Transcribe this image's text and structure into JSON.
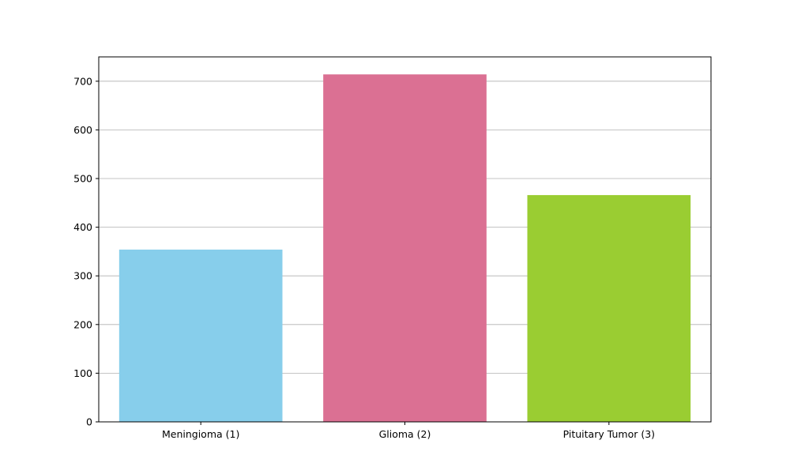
{
  "chart_data": {
    "type": "bar",
    "categories": [
      "Meningioma (1)",
      "Glioma (2)",
      "Pituitary Tumor (3)"
    ],
    "values": [
      354,
      714,
      466
    ],
    "colors": [
      "#87ceeb",
      "#db7093",
      "#9acd32"
    ],
    "title": "",
    "xlabel": "",
    "ylabel": "",
    "ylim": [
      0,
      750
    ],
    "yticks": [
      0,
      100,
      200,
      300,
      400,
      500,
      600,
      700
    ],
    "grid": "y-axis horizontal lines",
    "grid_color": "#b0b0b0",
    "legend": "none"
  }
}
